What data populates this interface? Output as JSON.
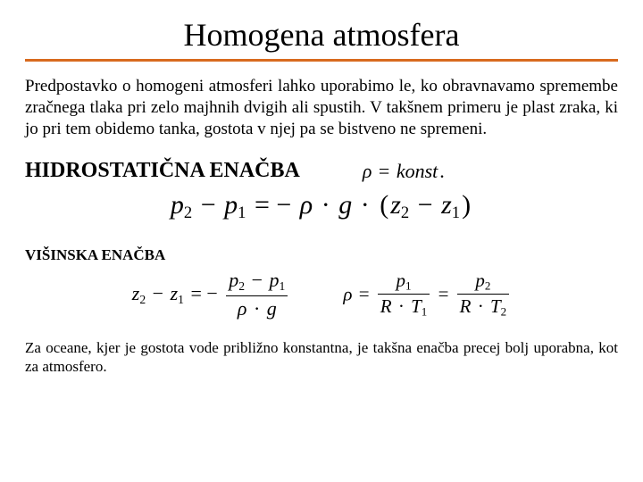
{
  "title": "Homogena atmosfera",
  "rule_color": "#d86a1e",
  "para1": "Predpostavko o homogeni atmosferi lahko uporabimo le, ko obravnavamo spremembe zračnega tlaka pri zelo majhnih dvigih ali spustih. V takšnem primeru je plast zraka, ki jo pri tem obidemo tanka, gostota v njej pa se bistveno ne spremeni.",
  "heading1": "HIDROSTATIČNA ENAČBA",
  "rho_const": "ρ = konst.",
  "heading2": "VIŠINSKA ENAČBA",
  "para2": "Za oceane, kjer je gostota vode približno konstantna, je takšna enačba precej bolj uporabna, kot za atmosfero.",
  "background_color": "#ffffff",
  "text_color": "#000000",
  "title_fontsize": 36,
  "para_fontsize": 19,
  "heading1_fontsize": 24,
  "heading2_fontsize": 17,
  "para2_fontsize": 17,
  "eq1": {
    "p2": "p",
    "p2_sub": "2",
    "p1": "p",
    "p1_sub": "1",
    "rho": "ρ",
    "g": "g",
    "z2": "z",
    "z2_sub": "2",
    "z1": "z",
    "z1_sub": "1"
  },
  "eq2a": {
    "z2": "z",
    "z2_sub": "2",
    "z1": "z",
    "z1_sub": "1",
    "p2": "p",
    "p2_sub": "2",
    "p1": "p",
    "p1_sub": "1",
    "rho": "ρ",
    "g": "g"
  },
  "eq2b": {
    "rho": "ρ",
    "p1": "p",
    "p1_sub": "1",
    "R": "R",
    "T1": "T",
    "T1_sub": "1",
    "p2": "p",
    "p2_sub": "2",
    "T2": "T",
    "T2_sub": "2"
  }
}
